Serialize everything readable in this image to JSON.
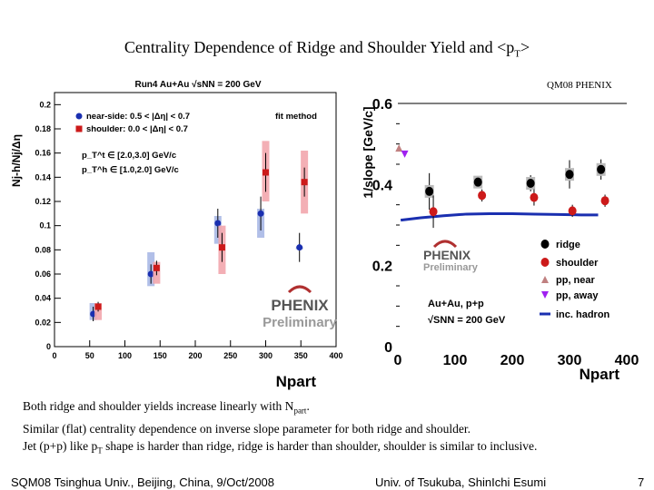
{
  "slide": {
    "title_main": "Centrality Dependence of Ridge and Shoulder Yield and <p",
    "title_sub": "T",
    "title_end": ">",
    "tag": "QM08 PHENIX"
  },
  "bullets": [
    {
      "a": "Both ridge and shoulder yields increase linearly with N",
      "sub": "part",
      "b": "."
    },
    {
      "a": "Similar (flat) centrality dependence on inverse slope parameter for both ridge and shoulder.",
      "sub": "",
      "b": ""
    },
    {
      "a": "Jet (p+p) like p",
      "sub": "T",
      "b": " shape is harder than ridge, ridge is harder than shoulder, shoulder is similar to inclusive."
    }
  ],
  "footer": {
    "left": "SQM08 Tsinghua Univ., Beijing, China, 9/Oct/2008",
    "mid": "Univ. of Tsukuba, ShinIchi Esumi",
    "page": "7"
  },
  "colors": {
    "blue": "#1a2fb0",
    "red": "#cc1a1a",
    "blue_band": "#a9b8e6",
    "red_band": "#f2a6ad",
    "pp_near": "#c08080",
    "pp_away": "#a020f0"
  },
  "chart_data": [
    {
      "type": "scatter",
      "title": "Run4 Au+Au √sNN = 200 GeV",
      "xlabel": "Npart",
      "ylabel": "Nj-h/Nj/Δη",
      "xlim": [
        0,
        400
      ],
      "ylim": [
        0,
        0.21
      ],
      "xticks": [
        0,
        50,
        100,
        150,
        200,
        250,
        300,
        350,
        400
      ],
      "yticks": [
        0,
        0.02,
        0.04,
        0.06,
        0.08,
        0.1,
        0.12,
        0.14,
        0.16,
        0.18,
        0.2
      ],
      "legend": {
        "near": "near-side: 0.5 < |Δη| < 0.7",
        "shoulder": "shoulder: 0.0 < |Δη| < 0.7",
        "method": "fit method",
        "pt_trig": "p_T^t ∈ [2.0,3.0] GeV/c",
        "pt_assoc": "p_T^h ∈ [1.0,2.0] GeV/c"
      },
      "logo": "PHENIX",
      "logo_sub": "Preliminary",
      "series": [
        {
          "name": "near-side: 0.5 < |Δη| < 0.7",
          "color": "#1a2fb0",
          "x": [
            55,
            137,
            232,
            293,
            348
          ],
          "y": [
            0.027,
            0.06,
            0.102,
            0.11,
            0.082
          ],
          "err": [
            0.006,
            0.008,
            0.012,
            0.014,
            0.012
          ],
          "syslo": [
            0.022,
            0.05,
            0.085,
            0.09,
            0.082
          ],
          "syshi": [
            0.036,
            0.078,
            0.108,
            0.114,
            0.082
          ]
        },
        {
          "name": "shoulder: 0.0 < |Δη| < 0.7",
          "color": "#cc1a1a",
          "x": [
            62,
            145,
            238,
            300,
            355
          ],
          "y": [
            0.033,
            0.065,
            0.082,
            0.144,
            0.136
          ],
          "err": [
            0.004,
            0.006,
            0.012,
            0.016,
            0.012
          ],
          "syslo": [
            0.022,
            0.052,
            0.06,
            0.12,
            0.11
          ],
          "syshi": [
            0.036,
            0.07,
            0.1,
            0.17,
            0.162
          ]
        }
      ]
    },
    {
      "type": "scatter",
      "xlabel": "Npart",
      "ylabel": "1/slope [GeV/c]",
      "xlim": [
        0,
        400
      ],
      "ylim": [
        0,
        0.6
      ],
      "xticks": [
        0,
        100,
        200,
        300,
        400
      ],
      "yticks": [
        0,
        0.2,
        0.4,
        0.6
      ],
      "logo": "PHENIX",
      "logo_sub": "Preliminary",
      "annotation": "Au+Au, p+p",
      "annotation2": "√SNN = 200 GeV",
      "series": [
        {
          "name": "ridge",
          "color": "#000000",
          "x": [
            55,
            140,
            232,
            300,
            355
          ],
          "y": [
            0.383,
            0.406,
            0.403,
            0.425,
            0.437
          ],
          "err": [
            0.045,
            0.015,
            0.02,
            0.035,
            0.025
          ]
        },
        {
          "name": "shoulder",
          "color": "#cc1a1a",
          "x": [
            62,
            147,
            238,
            305,
            362
          ],
          "y": [
            0.333,
            0.373,
            0.368,
            0.335,
            0.36
          ],
          "err": [
            0.04,
            0.015,
            0.02,
            0.015,
            0.015
          ]
        },
        {
          "name": "pp, near",
          "color": "#c08080",
          "x": [
            2
          ],
          "y": [
            0.49
          ],
          "err": [
            0.01
          ]
        },
        {
          "name": "pp, away",
          "color": "#a020f0",
          "x": [
            12
          ],
          "y": [
            0.475
          ],
          "err": [
            0.01
          ]
        },
        {
          "name": "inc. hadron",
          "color": "#1a2fb0",
          "x": [
            5,
            40,
            80,
            120,
            160,
            200,
            240,
            280,
            320,
            350
          ],
          "y": [
            0.312,
            0.318,
            0.323,
            0.327,
            0.328,
            0.328,
            0.327,
            0.326,
            0.325,
            0.325
          ]
        }
      ]
    }
  ]
}
